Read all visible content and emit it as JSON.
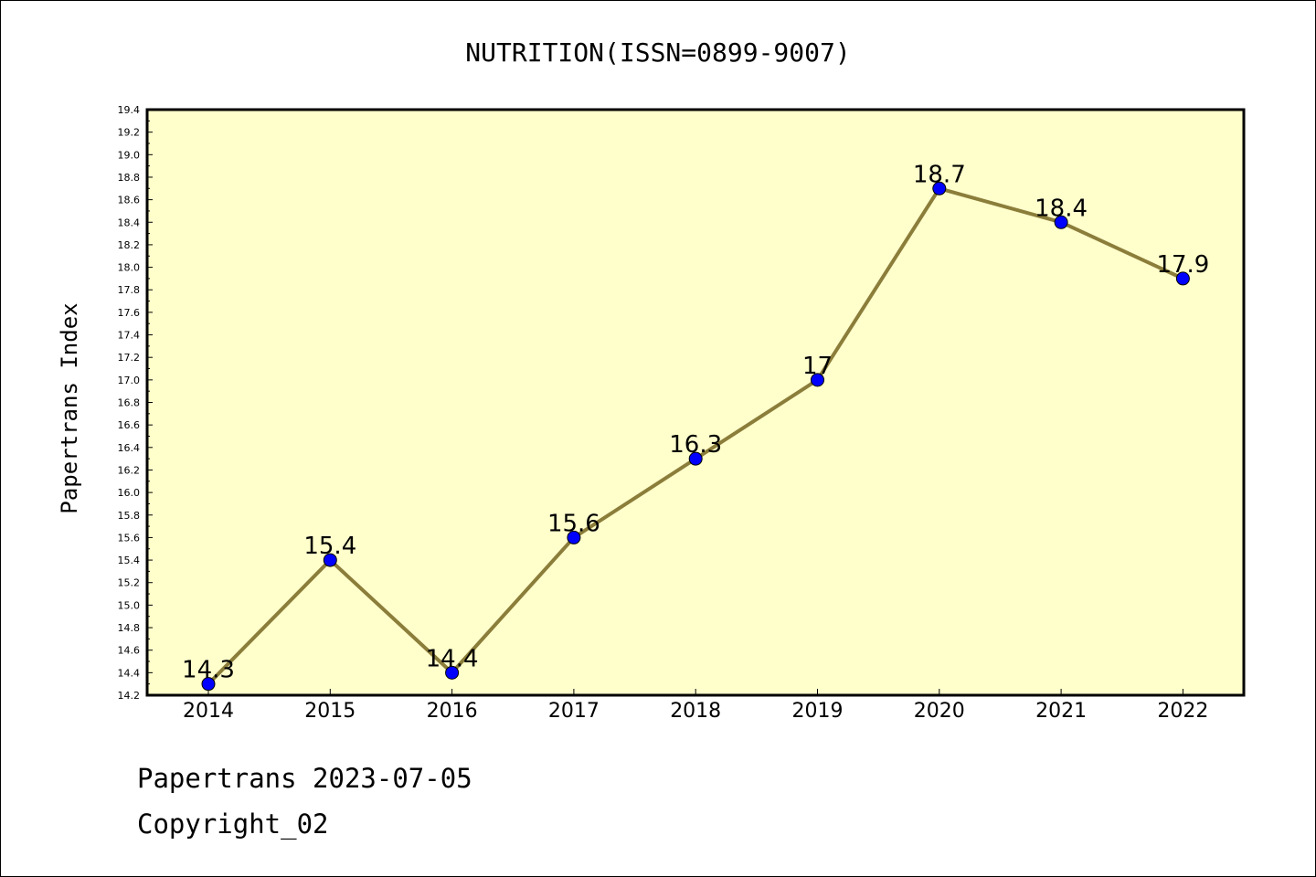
{
  "chart_data": {
    "type": "line",
    "title": "NUTRITION(ISSN=0899-9007)",
    "xlabel": "",
    "ylabel": "Papertrans Index",
    "categories": [
      "2014",
      "2015",
      "2016",
      "2017",
      "2018",
      "2019",
      "2020",
      "2021",
      "2022"
    ],
    "series": [
      {
        "values": [
          14.3,
          15.4,
          14.4,
          15.6,
          16.3,
          17.0,
          18.7,
          18.4,
          17.9
        ]
      }
    ],
    "data_labels": [
      "14.3",
      "15.4",
      "14.4",
      "15.6",
      "16.3",
      "17",
      "18.7",
      "18.4",
      "17.9"
    ],
    "ylim": [
      14.2,
      19.4
    ],
    "yticks": [
      "14.2",
      "14.4",
      "14.6",
      "14.8",
      "15.0",
      "15.2",
      "15.4",
      "15.6",
      "15.8",
      "16.0",
      "16.2",
      "16.4",
      "16.6",
      "16.8",
      "17.0",
      "17.2",
      "17.4",
      "17.6",
      "17.8",
      "18.0",
      "18.2",
      "18.4",
      "18.6",
      "18.8",
      "19.0",
      "19.2",
      "19.4"
    ],
    "grid": false,
    "legend": "none",
    "colors": {
      "plot_background": "#ffffcc",
      "line": "#8b7d3a",
      "marker": "#0000ff"
    }
  },
  "footer": {
    "line1": "Papertrans 2023-07-05",
    "line2": "Copyright_02"
  }
}
